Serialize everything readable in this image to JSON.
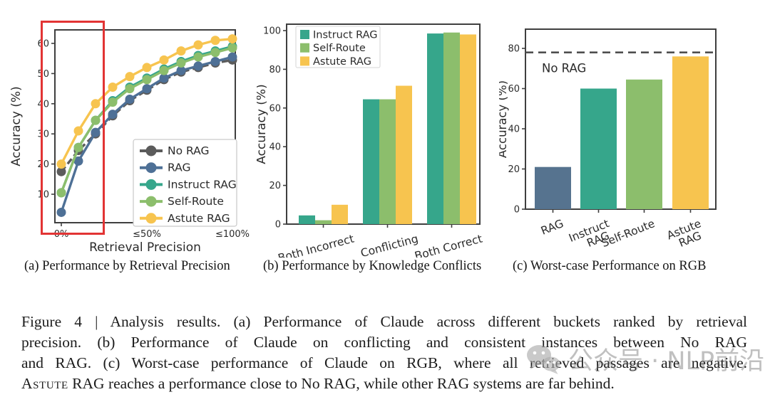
{
  "figure": {
    "subcaptions": [
      "(a)  Performance by Retrieval Precision",
      "(b)  Performance by Knowledge Conflicts",
      "(c)  Worst-case Performance on RGB"
    ],
    "caption": {
      "prefix_lines": [
        "Figure 4 | Analysis results. (a) Performance of Claude across different buckets ranked by retrieval",
        "precision.  (b) Performance of Claude on conflicting and consistent instances between No RAG",
        "and RAG. (c) Worst-case performance of Claude on RGB, where all retrieved passages are negative."
      ],
      "last_line_smallcaps": "Astute",
      "last_line_rest": " RAG reaches a performance close to No RAG, while other RAG systems are far behind."
    }
  },
  "watermark": {
    "icon": "wechat-icon",
    "text": "公众号 · NLP前沿"
  },
  "chart_data": [
    {
      "id": "a",
      "type": "line",
      "title": "",
      "xlabel": "Retrieval Precision",
      "ylabel": "Accuracy (%)",
      "x": [
        0,
        1,
        2,
        3,
        4,
        5,
        6,
        7,
        8,
        9,
        10
      ],
      "xticks": [
        {
          "pos": 0,
          "label": "0%"
        },
        {
          "pos": 5,
          "label": "≤50%"
        },
        {
          "pos": 10,
          "label": "≤100%"
        }
      ],
      "yticks": [
        10,
        20,
        30,
        40,
        50,
        60
      ],
      "ylim": [
        0,
        65
      ],
      "grid": false,
      "legend_position": "lower right",
      "series": [
        {
          "name": "No RAG",
          "color": "#5b5b5b",
          "dash": true,
          "values": [
            17.5,
            24.5,
            30,
            36,
            41,
            44.5,
            48,
            50.5,
            52,
            53.5,
            54.5
          ]
        },
        {
          "name": "RAG",
          "color": "#4e7096",
          "dash": false,
          "values": [
            4,
            21,
            30.5,
            36.5,
            41.5,
            45,
            48.5,
            51,
            52.5,
            54,
            55.5
          ]
        },
        {
          "name": "Instruct RAG",
          "color": "#36a68b",
          "dash": false,
          "values": [
            10.5,
            25.5,
            34.5,
            41,
            45.5,
            48.5,
            51.5,
            54,
            56,
            57.5,
            59
          ]
        },
        {
          "name": "Self-Route",
          "color": "#8cbe6c",
          "dash": false,
          "values": [
            10.5,
            25.5,
            34.5,
            40.5,
            45,
            48,
            51,
            53.5,
            55.5,
            57,
            58.5
          ]
        },
        {
          "name": "Astute RAG",
          "color": "#f7c44f",
          "dash": false,
          "values": [
            20,
            31,
            40,
            45.5,
            49,
            52,
            54.5,
            57.5,
            59.5,
            61,
            61.5
          ]
        }
      ],
      "annotation": {
        "type": "box",
        "color": "#e23434",
        "covers": "0% bucket"
      }
    },
    {
      "id": "b",
      "type": "bar",
      "title": "",
      "xlabel": "",
      "ylabel": "Accuracy (%)",
      "categories": [
        "Both Incorrect",
        "Conflicting",
        "Both Correct"
      ],
      "yticks": [
        0,
        20,
        40,
        60,
        80,
        100
      ],
      "ylim": [
        0,
        103
      ],
      "grid": false,
      "legend_position": "upper left",
      "xtick_rotation": -15,
      "series": [
        {
          "name": "Instruct RAG",
          "color": "#36a68b",
          "values": [
            4.5,
            64.5,
            98.5
          ]
        },
        {
          "name": "Self-Route",
          "color": "#8cbe6c",
          "values": [
            2,
            64.5,
            99
          ]
        },
        {
          "name": "Astute RAG",
          "color": "#f7c44f",
          "values": [
            10,
            71.5,
            98
          ]
        }
      ]
    },
    {
      "id": "c",
      "type": "bar",
      "title": "",
      "xlabel": "",
      "ylabel": "Accuracy (%)",
      "categories": [
        "RAG",
        "Instruct\nRAG",
        "Self-Route",
        "Astute\nRAG"
      ],
      "values": [
        21,
        60,
        64.5,
        76
      ],
      "bar_colors": [
        "#56738f",
        "#36a68b",
        "#8cbe6c",
        "#f7c44f"
      ],
      "yticks": [
        0,
        20,
        40,
        60,
        80
      ],
      "ylim": [
        0,
        89
      ],
      "grid": false,
      "xtick_rotation": -22,
      "reference_line": {
        "value": 78,
        "label": "No RAG",
        "style": "dashed",
        "color": "#4f4f4f"
      }
    }
  ]
}
